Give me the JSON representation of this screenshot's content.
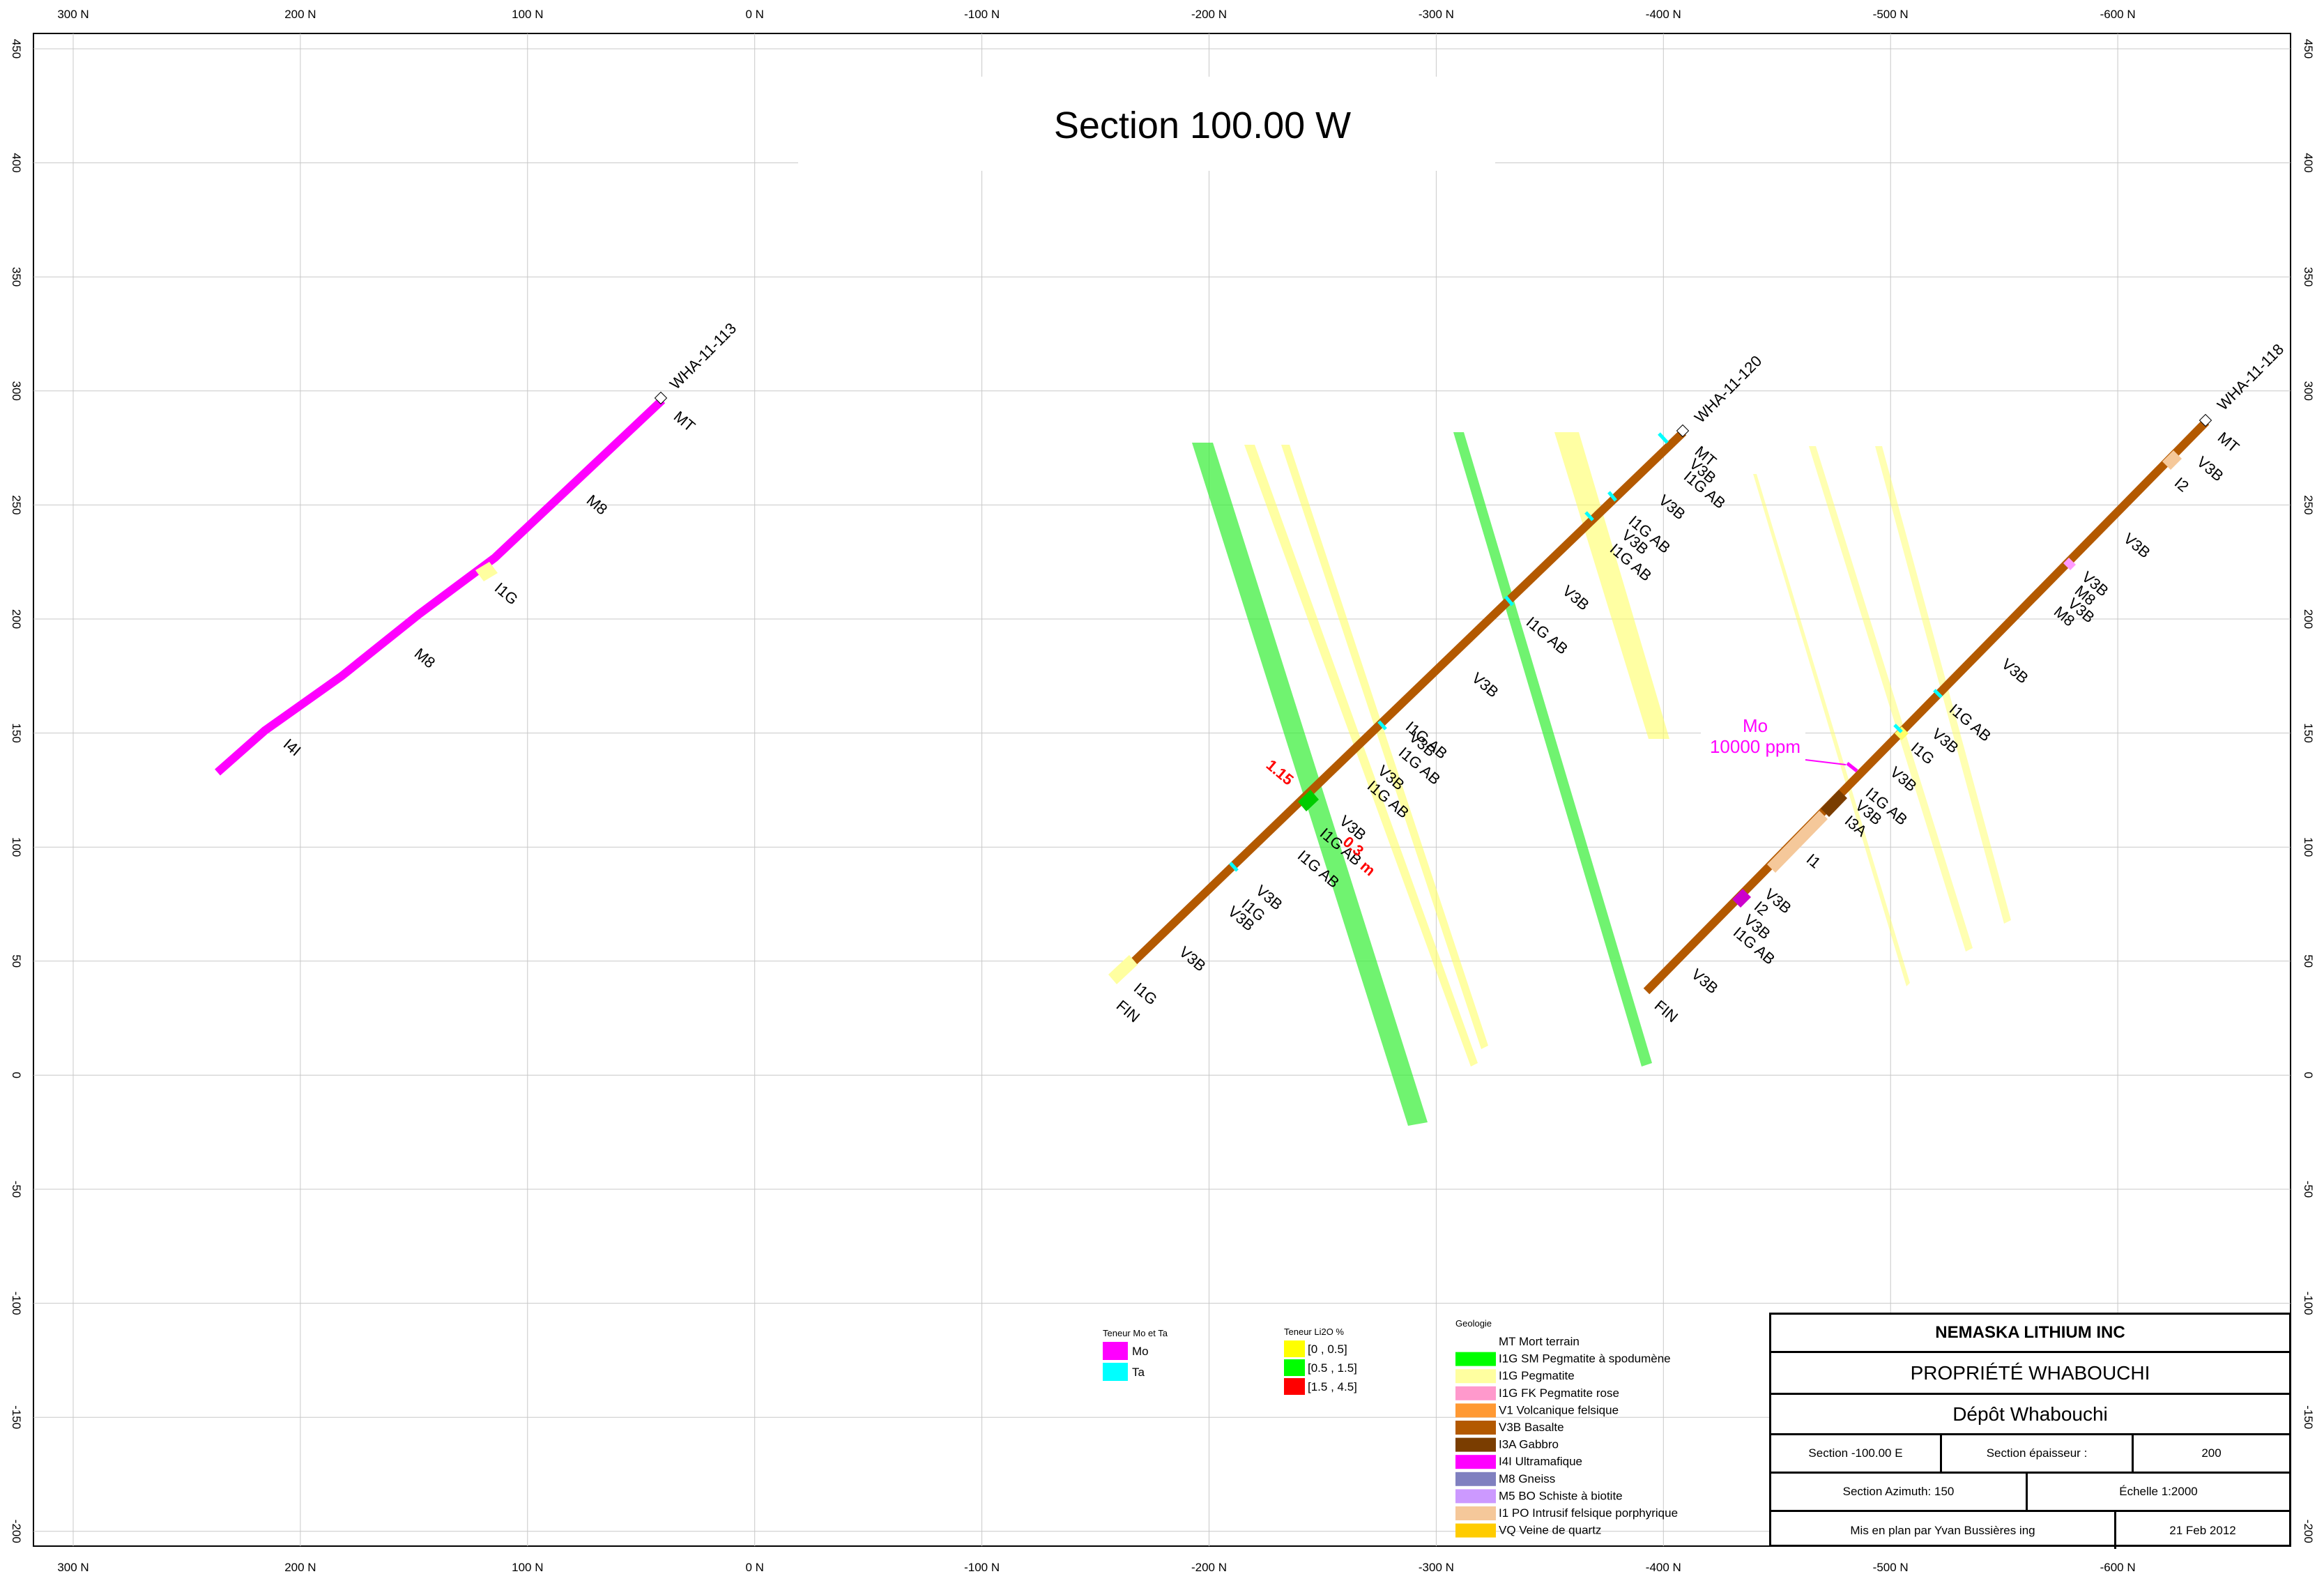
{
  "title": "Section 100.00 W",
  "axes": {
    "x_top_labels": [
      "300 N",
      "200 N",
      "100 N",
      "0 N",
      "-100 N",
      "-200 N",
      "-300 N",
      "-400 N",
      "-500 N",
      "-600 N"
    ],
    "x_bottom_labels": [
      "300 N",
      "200 N",
      "100 N",
      "0 N",
      "-100 N",
      "-200 N",
      "-300 N",
      "-400 N",
      "-500 N",
      "-600 N"
    ],
    "y_labels": [
      "450",
      "400",
      "350",
      "300",
      "250",
      "200",
      "150",
      "100",
      "50",
      "0",
      "-50",
      "-100",
      "-150",
      "-200"
    ]
  },
  "drillholes": [
    {
      "id": "WHA-11-113",
      "intervals": [
        "MT",
        "M8",
        "I1G",
        "M8",
        "I4I"
      ]
    },
    {
      "id": "WHA-11-120",
      "intervals": [
        "MT",
        "V3B",
        "I1G AB",
        "I1G AB",
        "V3B",
        "I1G AB",
        "V3B",
        "I1G AB",
        "V3B",
        "I1G AB",
        "V3B",
        "I1G AB",
        "V3B",
        "I1G AB",
        "V3B",
        "I1G AB",
        "V3B",
        "I1G AB",
        "V3B",
        "I1G",
        "V3B",
        "I1G",
        "FIN"
      ]
    },
    {
      "id": "WHA-11-118",
      "intervals": [
        "MT",
        "V3B",
        "I2",
        "V3B",
        "V3B",
        "M8",
        "V3B",
        "M8",
        "V3B",
        "I1G AB",
        "V3B",
        "I1G",
        "V3B",
        "I1G AB",
        "V3B",
        "I3A",
        "I1",
        "V3B",
        "I2",
        "V3B",
        "I1G AB",
        "V3B",
        "FIN"
      ]
    }
  ],
  "annotations": {
    "mo_label": "Mo",
    "mo_value": "10000 ppm",
    "red_grade": "1.15",
    "red_length": "m",
    "red_suffix": "0.3"
  },
  "legends": {
    "mo_ta": {
      "title": "Teneur Mo et Ta",
      "items": [
        {
          "label": "Mo",
          "color": "#ff00ff"
        },
        {
          "label": "Ta",
          "color": "#00ffff"
        }
      ]
    },
    "li2o": {
      "title": "Teneur Li2O %",
      "items": [
        {
          "label": "[0 , 0.5]",
          "color": "#ffff00"
        },
        {
          "label": "[0.5 , 1.5]",
          "color": "#00ff00"
        },
        {
          "label": "[1.5 , 4.5]",
          "color": "#ff0000"
        }
      ]
    },
    "geology": {
      "title": "Geologie",
      "items": [
        {
          "label": "MT Mort terrain",
          "color": "#ffffff"
        },
        {
          "label": "I1G SM Pegmatite à spodumène",
          "color": "#00ff00"
        },
        {
          "label": "I1G       Pegmatite",
          "color": "#ffffa0"
        },
        {
          "label": "I1G FK Pegmatite rose",
          "color": "#ff99cc"
        },
        {
          "label": "V1 Volcanique felsique",
          "color": "#ff9933"
        },
        {
          "label": "V3B Basalte",
          "color": "#b35900"
        },
        {
          "label": "I3A Gabbro",
          "color": "#7a3d00"
        },
        {
          "label": "I4I Ultramafique",
          "color": "#ff00ff"
        },
        {
          "label": "M8 Gneiss",
          "color": "#8080c0"
        },
        {
          "label": "M5 BO Schiste à biotite",
          "color": "#cc99ff"
        },
        {
          "label": "I1 PO Intrusif felsique porphyrique",
          "color": "#f5c89a"
        },
        {
          "label": "VQ Veine de quartz",
          "color": "#ffcc00"
        }
      ]
    }
  },
  "title_block": {
    "company": "NEMASKA LITHIUM INC",
    "property": "PROPRIÉTÉ WHABOUCHI",
    "deposit": "Dépôt Whabouchi",
    "section": "Section -100.00 E",
    "thickness_label": "Section épaisseur :",
    "thickness_value": "200",
    "azimuth": "Section Azimuth: 150",
    "scale": "Échelle  1:2000",
    "author": "Mis en plan par Yvan Bussières ing",
    "date": "21 Feb 2012"
  }
}
